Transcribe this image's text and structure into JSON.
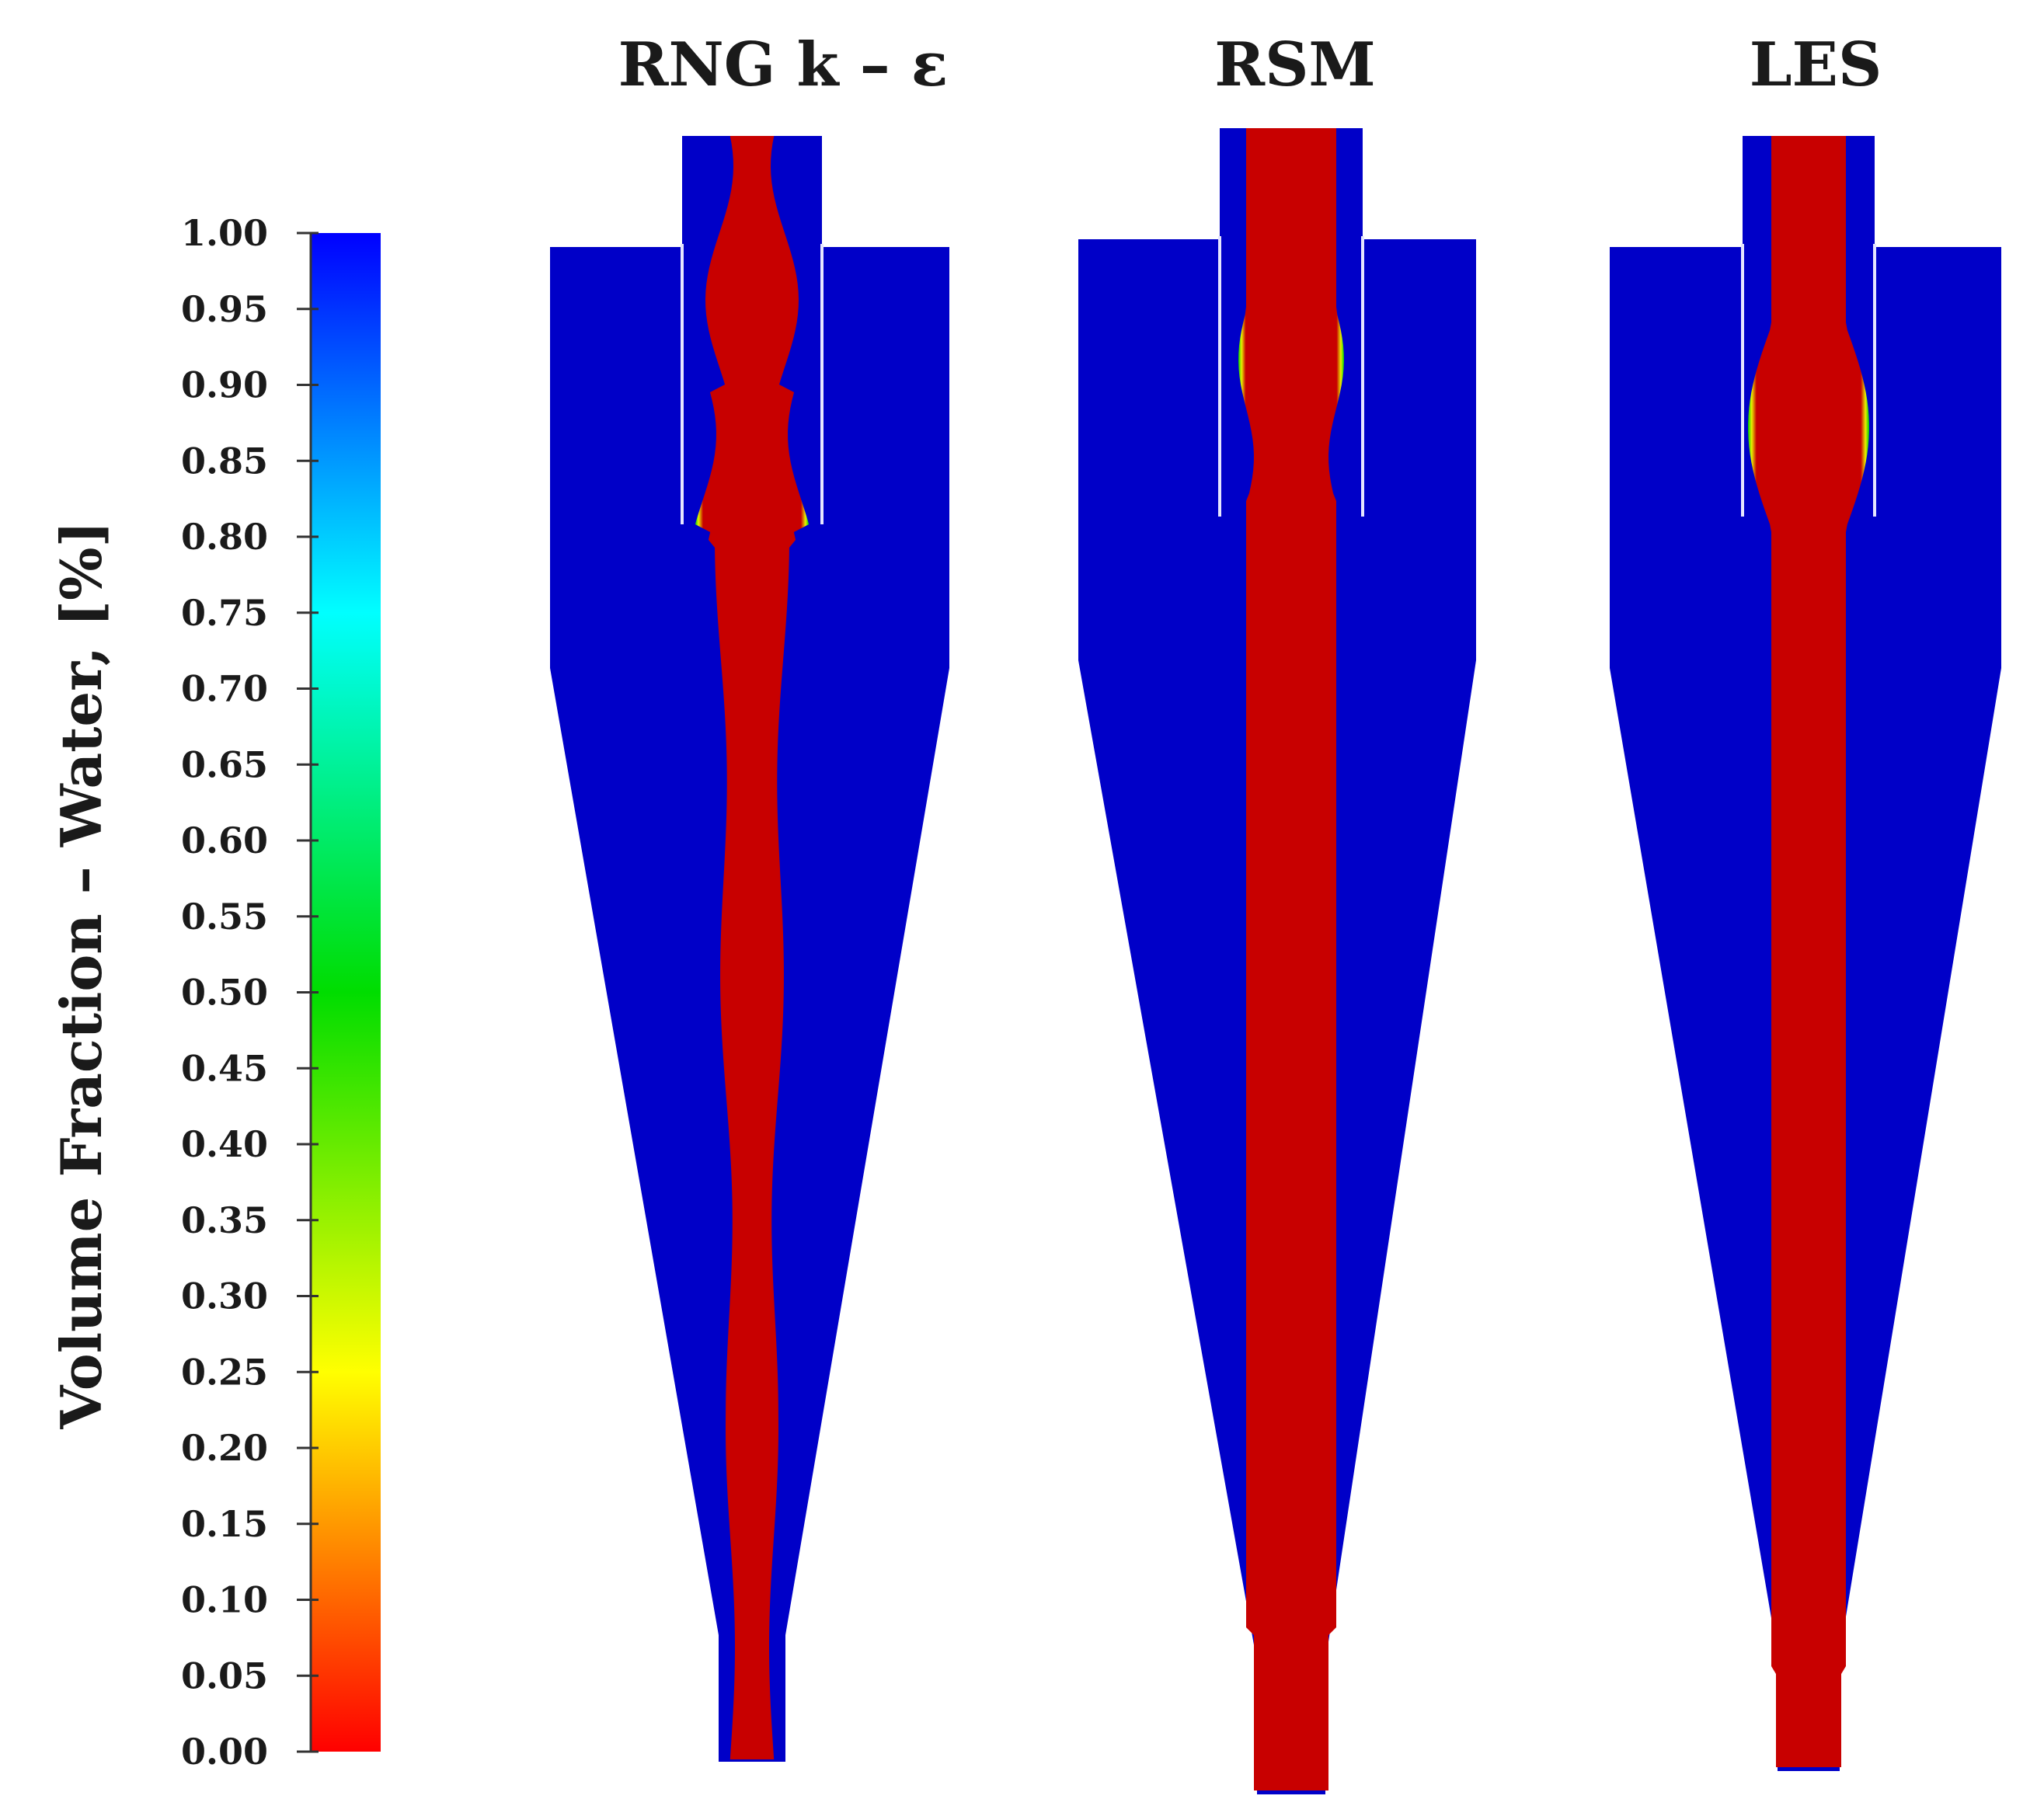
{
  "colorbar": {
    "title": "Volume Fraction – Water, [%]",
    "tick_labels": [
      "1.00",
      "0.95",
      "0.90",
      "0.85",
      "0.80",
      "0.75",
      "0.70",
      "0.65",
      "0.60",
      "0.55",
      "0.50",
      "0.45",
      "0.40",
      "0.35",
      "0.30",
      "0.25",
      "0.20",
      "0.15",
      "0.10",
      "0.05",
      "0.00"
    ],
    "min": 0.0,
    "max": 1.0,
    "stops": [
      {
        "value": 1.0,
        "color": "#0000ff"
      },
      {
        "value": 0.75,
        "color": "#00ffff"
      },
      {
        "value": 0.5,
        "color": "#00dd00"
      },
      {
        "value": 0.25,
        "color": "#ffff00"
      },
      {
        "value": 0.0,
        "color": "#ff0000"
      }
    ]
  },
  "panels": [
    {
      "title": "RNG k – ε",
      "core_shape": "wavy"
    },
    {
      "title": "RSM",
      "core_shape": "straight"
    },
    {
      "title": "LES",
      "core_shape": "bulge"
    }
  ],
  "colors": {
    "water": "#0000c8",
    "air_core": "#c80000",
    "interface": "#00d000",
    "vortex_finder_wall": "#e6e6ff"
  }
}
